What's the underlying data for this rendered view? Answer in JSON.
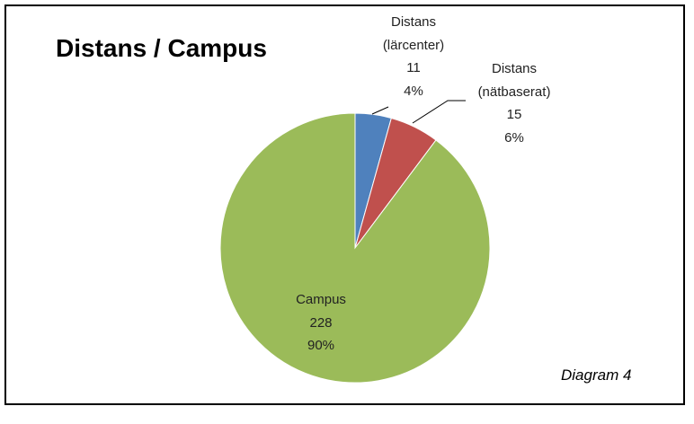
{
  "chart_data": {
    "type": "pie",
    "title": "Distans / Campus",
    "categories": [
      "Distans\n(lärcenter)",
      "Distans\n(nätbaserat)",
      "Campus"
    ],
    "values": [
      11,
      15,
      228
    ],
    "percent_labels": [
      "4%",
      "6%",
      "90%"
    ],
    "colors": [
      "#4f81bd",
      "#c0504d",
      "#9bbb59"
    ],
    "annotation": "Diagram 4"
  }
}
